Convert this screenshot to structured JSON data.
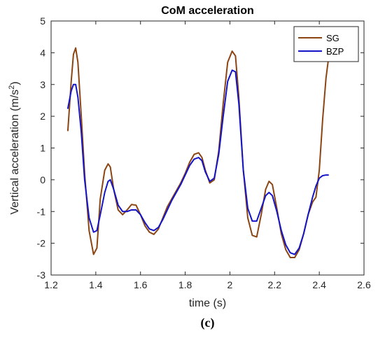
{
  "chart_data": {
    "type": "line",
    "title": "CoM acceleration",
    "xlabel": "time (s)",
    "ylabel": "Vertical acceleration (m/s",
    "ylabel_sup": "2",
    "ylabel_end": ")",
    "xlim": [
      1.2,
      2.6
    ],
    "ylim": [
      -3,
      5
    ],
    "xticks": [
      1.2,
      1.4,
      1.6,
      1.8,
      2.0,
      2.2,
      2.4,
      2.6
    ],
    "xtick_labels": [
      "1.2",
      "1.4",
      "1.6",
      "1.8",
      "2",
      "2.2",
      "2.4",
      "2.6"
    ],
    "yticks": [
      -3,
      -2,
      -1,
      0,
      1,
      2,
      3,
      4,
      5
    ],
    "ytick_labels": [
      "-3",
      "-2",
      "-1",
      "0",
      "1",
      "2",
      "3",
      "4",
      "5"
    ],
    "grid": false,
    "legend_position": "top-right",
    "panel_label": "(c)",
    "series": [
      {
        "name": "SG",
        "color": "#8B4513",
        "x": [
          1.275,
          1.29,
          1.3,
          1.31,
          1.32,
          1.335,
          1.35,
          1.37,
          1.39,
          1.405,
          1.42,
          1.44,
          1.455,
          1.465,
          1.48,
          1.5,
          1.52,
          1.54,
          1.56,
          1.58,
          1.6,
          1.62,
          1.64,
          1.66,
          1.68,
          1.7,
          1.72,
          1.74,
          1.76,
          1.78,
          1.8,
          1.82,
          1.84,
          1.86,
          1.875,
          1.89,
          1.91,
          1.93,
          1.95,
          1.97,
          1.99,
          2.01,
          2.025,
          2.04,
          2.06,
          2.08,
          2.1,
          2.12,
          2.14,
          2.16,
          2.175,
          2.19,
          2.21,
          2.23,
          2.25,
          2.27,
          2.29,
          2.31,
          2.33,
          2.35,
          2.37,
          2.385,
          2.4,
          2.415,
          2.43,
          2.44
        ],
        "y": [
          1.55,
          3.1,
          3.95,
          4.15,
          3.7,
          2.0,
          0.2,
          -1.6,
          -2.35,
          -2.15,
          -0.6,
          0.3,
          0.5,
          0.4,
          -0.3,
          -0.95,
          -1.1,
          -0.95,
          -0.78,
          -0.8,
          -1.1,
          -1.45,
          -1.65,
          -1.72,
          -1.55,
          -1.2,
          -0.85,
          -0.6,
          -0.35,
          -0.1,
          0.2,
          0.55,
          0.8,
          0.85,
          0.7,
          0.3,
          -0.1,
          0.0,
          0.9,
          2.4,
          3.7,
          4.05,
          3.9,
          2.6,
          0.3,
          -1.2,
          -1.75,
          -1.8,
          -1.1,
          -0.3,
          -0.05,
          -0.15,
          -0.9,
          -1.7,
          -2.2,
          -2.45,
          -2.45,
          -2.2,
          -1.7,
          -1.1,
          -0.7,
          -0.55,
          0.3,
          1.9,
          3.2,
          3.75
        ]
      },
      {
        "name": "BZP",
        "color": "#1515C8",
        "x": [
          1.275,
          1.29,
          1.3,
          1.31,
          1.32,
          1.335,
          1.35,
          1.37,
          1.39,
          1.405,
          1.42,
          1.44,
          1.455,
          1.465,
          1.48,
          1.5,
          1.52,
          1.54,
          1.56,
          1.58,
          1.6,
          1.62,
          1.64,
          1.66,
          1.68,
          1.7,
          1.72,
          1.74,
          1.76,
          1.78,
          1.8,
          1.82,
          1.84,
          1.86,
          1.875,
          1.89,
          1.91,
          1.93,
          1.95,
          1.97,
          1.99,
          2.01,
          2.025,
          2.04,
          2.06,
          2.08,
          2.1,
          2.12,
          2.14,
          2.16,
          2.175,
          2.19,
          2.21,
          2.23,
          2.25,
          2.27,
          2.29,
          2.31,
          2.33,
          2.35,
          2.37,
          2.385,
          2.4,
          2.415,
          2.43,
          2.44
        ],
        "y": [
          2.25,
          2.8,
          3.0,
          3.0,
          2.6,
          1.5,
          0.0,
          -1.2,
          -1.65,
          -1.6,
          -1.1,
          -0.4,
          -0.05,
          0.0,
          -0.3,
          -0.8,
          -1.0,
          -1.0,
          -0.95,
          -0.95,
          -1.1,
          -1.35,
          -1.55,
          -1.6,
          -1.5,
          -1.25,
          -0.95,
          -0.65,
          -0.4,
          -0.15,
          0.15,
          0.45,
          0.65,
          0.7,
          0.6,
          0.25,
          -0.05,
          0.05,
          0.8,
          2.0,
          3.1,
          3.45,
          3.4,
          2.4,
          0.3,
          -0.9,
          -1.3,
          -1.3,
          -0.9,
          -0.5,
          -0.4,
          -0.5,
          -1.0,
          -1.6,
          -2.05,
          -2.3,
          -2.35,
          -2.15,
          -1.7,
          -1.1,
          -0.55,
          -0.2,
          0.05,
          0.13,
          0.15,
          0.15
        ]
      }
    ]
  }
}
